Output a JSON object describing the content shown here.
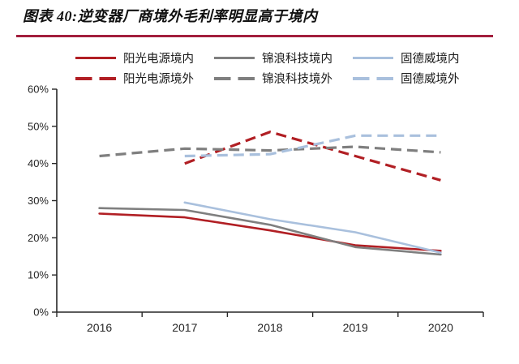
{
  "page": {
    "title": "图表 40:逆变器厂商境外毛利率明显高于境内"
  },
  "colors": {
    "red": "#B11F24",
    "gray": "#7F7F7F",
    "light_blue": "#A9C0DD",
    "axis": "#262626",
    "title_rule": "#A21E3D",
    "title_text": "#111111"
  },
  "chart_data": {
    "type": "line",
    "title": "逆变器厂商境外毛利率明显高于境内",
    "categories": [
      "2016",
      "2017",
      "2018",
      "2019",
      "2020"
    ],
    "series": [
      {
        "name": "阳光电源境内",
        "color": "#B11F24",
        "style": "solid",
        "values": [
          26.5,
          25.5,
          22,
          18,
          16.5
        ]
      },
      {
        "name": "阳光电源境外",
        "color": "#B11F24",
        "style": "dashed",
        "values": [
          null,
          40,
          48.5,
          42,
          35.5
        ]
      },
      {
        "name": "锦浪科技境内",
        "color": "#7F7F7F",
        "style": "solid",
        "values": [
          28,
          27.5,
          23.5,
          17.5,
          15.5
        ]
      },
      {
        "name": "锦浪科技境外",
        "color": "#7F7F7F",
        "style": "dashed",
        "values": [
          42,
          44,
          43.5,
          44.5,
          43
        ]
      },
      {
        "name": "固德威境内",
        "color": "#A9C0DD",
        "style": "solid",
        "values": [
          null,
          29.5,
          25,
          21.5,
          16
        ]
      },
      {
        "name": "固德威境外",
        "color": "#A9C0DD",
        "style": "dashed",
        "values": [
          null,
          42,
          42.5,
          47.5,
          47.5
        ]
      }
    ],
    "xlabel": "",
    "ylabel": "",
    "ylim": [
      0,
      60
    ],
    "ytick_step": 10,
    "yticks": [
      "0%",
      "10%",
      "20%",
      "30%",
      "40%",
      "50%",
      "60%"
    ],
    "grid": false,
    "legend_position": "top",
    "legend_rows": [
      [
        0,
        2,
        4
      ],
      [
        1,
        3,
        5
      ]
    ]
  }
}
